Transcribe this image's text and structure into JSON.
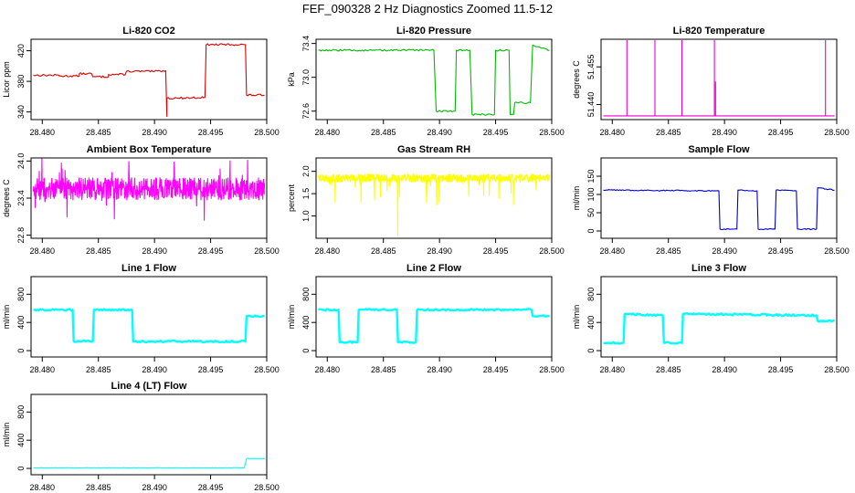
{
  "page": {
    "title": "FEF_090328  2 Hz Diagnostics Zoomed 11.5-12"
  },
  "chart_data": [
    {
      "id": "co2",
      "type": "line",
      "title": "Li-820 CO2",
      "ylabel": "Licor ppm",
      "color": "#dd0000",
      "xlim": [
        28.479,
        28.5
      ],
      "ylim": [
        330,
        435
      ],
      "xticks": [
        28.48,
        28.485,
        28.49,
        28.495,
        28.5
      ],
      "xtick_labels": [
        "28.480",
        "28.485",
        "28.490",
        "28.495",
        "28.500"
      ],
      "yticks": [
        340,
        380,
        420
      ],
      "ytick_labels": [
        "340",
        "380",
        "420"
      ],
      "noise": 1.2,
      "points": [
        [
          28.4792,
          388
        ],
        [
          28.4815,
          388
        ],
        [
          28.4815,
          387
        ],
        [
          28.4833,
          387
        ],
        [
          28.4833,
          390
        ],
        [
          28.4844,
          390
        ],
        [
          28.4845,
          386
        ],
        [
          28.4859,
          386
        ],
        [
          28.4859,
          389
        ],
        [
          28.4874,
          389
        ],
        [
          28.4875,
          393
        ],
        [
          28.49,
          393
        ],
        [
          28.491,
          394
        ],
        [
          28.4911,
          334
        ],
        [
          28.4911,
          358
        ],
        [
          28.492,
          358
        ],
        [
          28.4945,
          359
        ],
        [
          28.4946,
          428
        ],
        [
          28.4981,
          428
        ],
        [
          28.4982,
          362
        ],
        [
          28.4998,
          362
        ]
      ]
    },
    {
      "id": "pressure",
      "type": "line",
      "title": "Li-820 Pressure",
      "ylabel": "kPa",
      "color": "#00bb00",
      "xlim": [
        28.479,
        28.5
      ],
      "ylim": [
        72.5,
        73.45
      ],
      "xticks": [
        28.48,
        28.485,
        28.49,
        28.495,
        28.5
      ],
      "xtick_labels": [
        "28.480",
        "28.485",
        "28.490",
        "28.495",
        "28.500"
      ],
      "yticks": [
        72.6,
        73.0,
        73.4
      ],
      "ytick_labels": [
        "72.6",
        "73.0",
        "73.4"
      ],
      "noise": 0.01,
      "points": [
        [
          28.4792,
          73.32
        ],
        [
          28.4895,
          73.32
        ],
        [
          28.4897,
          72.6
        ],
        [
          28.4914,
          72.6
        ],
        [
          28.4915,
          73.32
        ],
        [
          28.4927,
          73.32
        ],
        [
          28.4929,
          72.56
        ],
        [
          28.4949,
          72.56
        ],
        [
          28.495,
          73.32
        ],
        [
          28.4962,
          73.32
        ],
        [
          28.4963,
          72.56
        ],
        [
          28.4966,
          72.56
        ],
        [
          28.4967,
          72.7
        ],
        [
          28.4981,
          72.7
        ],
        [
          28.4983,
          73.38
        ],
        [
          28.4998,
          73.32
        ]
      ]
    },
    {
      "id": "temperature",
      "type": "line",
      "title": "Li-820 Temperature",
      "ylabel": "degrees C",
      "color": "#ee00cc",
      "xlim": [
        28.479,
        28.5
      ],
      "ylim": [
        51.434,
        51.466
      ],
      "xticks": [
        28.48,
        28.485,
        28.49,
        28.495,
        28.5
      ],
      "xtick_labels": [
        "28.480",
        "28.485",
        "28.490",
        "28.495",
        "28.500"
      ],
      "yticks": [
        51.44,
        51.455
      ],
      "ytick_labels": [
        "51.440",
        "51.455"
      ],
      "noise": 0,
      "points": [
        [
          28.4792,
          51.4355
        ],
        [
          28.4813,
          51.4355
        ],
        [
          28.4813,
          51.4655
        ],
        [
          28.4813,
          51.4355
        ],
        [
          28.4838,
          51.4355
        ],
        [
          28.4838,
          51.4655
        ],
        [
          28.4838,
          51.4355
        ],
        [
          28.4862,
          51.4355
        ],
        [
          28.4862,
          51.4655
        ],
        [
          28.4862,
          51.4355
        ],
        [
          28.4891,
          51.4355
        ],
        [
          28.4891,
          51.4655
        ],
        [
          28.4891,
          51.4355
        ],
        [
          28.4892,
          51.4355
        ],
        [
          28.4892,
          51.449
        ],
        [
          28.4892,
          51.4355
        ],
        [
          28.499,
          51.4355
        ],
        [
          28.499,
          51.4655
        ],
        [
          28.499,
          51.4355
        ],
        [
          28.4998,
          51.4355
        ]
      ]
    },
    {
      "id": "ambient",
      "type": "line",
      "title": "Ambient Box Temperature",
      "ylabel": "degrees C",
      "color": "#ff00ff",
      "xlim": [
        28.479,
        28.5
      ],
      "ylim": [
        22.75,
        24.05
      ],
      "xticks": [
        28.48,
        28.485,
        28.49,
        28.495,
        28.5
      ],
      "xtick_labels": [
        "28.480",
        "28.485",
        "28.490",
        "28.495",
        "28.500"
      ],
      "yticks": [
        22.8,
        23.4,
        24.0
      ],
      "ytick_labels": [
        "22.8",
        "23.4",
        "24.0"
      ],
      "noise": 0.18,
      "points": [
        [
          28.4792,
          23.55
        ],
        [
          28.4998,
          23.55
        ]
      ]
    },
    {
      "id": "rh",
      "type": "line",
      "title": "Gas Stream RH",
      "ylabel": "percent",
      "color": "#ffff00",
      "xlim": [
        28.479,
        28.5
      ],
      "ylim": [
        0.5,
        2.3
      ],
      "xticks": [
        28.48,
        28.485,
        28.49,
        28.495,
        28.5
      ],
      "xtick_labels": [
        "28.480",
        "28.485",
        "28.490",
        "28.495",
        "28.500"
      ],
      "yticks": [
        1.0,
        1.5,
        2.0
      ],
      "ytick_labels": [
        "1.0",
        "1.5",
        "2.0"
      ],
      "noise": 0.09,
      "points": [
        [
          28.4792,
          1.85
        ],
        [
          28.4998,
          1.85
        ]
      ]
    },
    {
      "id": "sample",
      "type": "line",
      "title": "Sample Flow",
      "ylabel": "ml/min",
      "color": "#0000cc",
      "xlim": [
        28.479,
        28.5
      ],
      "ylim": [
        -20,
        200
      ],
      "xticks": [
        28.48,
        28.485,
        28.49,
        28.495,
        28.5
      ],
      "xtick_labels": [
        "28.480",
        "28.485",
        "28.490",
        "28.495",
        "28.500"
      ],
      "yticks": [
        0,
        50,
        100,
        150
      ],
      "ytick_labels": [
        "0",
        "50",
        "100",
        "150"
      ],
      "noise": 1.5,
      "points": [
        [
          28.4792,
          112
        ],
        [
          28.4895,
          110
        ],
        [
          28.4896,
          5
        ],
        [
          28.4911,
          5
        ],
        [
          28.4912,
          112
        ],
        [
          28.4929,
          110
        ],
        [
          28.493,
          5
        ],
        [
          28.4945,
          5
        ],
        [
          28.4946,
          112
        ],
        [
          28.4964,
          110
        ],
        [
          28.4965,
          5
        ],
        [
          28.4982,
          5
        ],
        [
          28.4983,
          118
        ],
        [
          28.4998,
          112
        ]
      ]
    },
    {
      "id": "line1",
      "type": "line",
      "title": "Line 1 Flow",
      "ylabel": "ml/min",
      "color": "#00ffff",
      "xlim": [
        28.479,
        28.5
      ],
      "ylim": [
        -90,
        1050
      ],
      "xticks": [
        28.48,
        28.485,
        28.49,
        28.495,
        28.5
      ],
      "xtick_labels": [
        "28.480",
        "28.485",
        "28.490",
        "28.495",
        "28.500"
      ],
      "yticks": [
        0,
        400,
        800
      ],
      "ytick_labels": [
        "0",
        "400",
        "800"
      ],
      "noise": 12,
      "points": [
        [
          28.4792,
          580
        ],
        [
          28.4827,
          580
        ],
        [
          28.4828,
          130
        ],
        [
          28.4845,
          130
        ],
        [
          28.4846,
          580
        ],
        [
          28.488,
          580
        ],
        [
          28.4881,
          130
        ],
        [
          28.4981,
          130
        ],
        [
          28.4982,
          490
        ],
        [
          28.4998,
          490
        ]
      ]
    },
    {
      "id": "line2",
      "type": "line",
      "title": "Line 2 Flow",
      "ylabel": "ml/min",
      "color": "#00ffff",
      "xlim": [
        28.479,
        28.5
      ],
      "ylim": [
        -90,
        1050
      ],
      "xticks": [
        28.48,
        28.485,
        28.49,
        28.495,
        28.5
      ],
      "xtick_labels": [
        "28.480",
        "28.485",
        "28.490",
        "28.495",
        "28.500"
      ],
      "yticks": [
        0,
        400,
        800
      ],
      "ytick_labels": [
        "0",
        "400",
        "800"
      ],
      "noise": 12,
      "points": [
        [
          28.4792,
          580
        ],
        [
          28.481,
          580
        ],
        [
          28.4811,
          120
        ],
        [
          28.4827,
          120
        ],
        [
          28.4828,
          580
        ],
        [
          28.4862,
          580
        ],
        [
          28.4863,
          120
        ],
        [
          28.4879,
          120
        ],
        [
          28.488,
          580
        ],
        [
          28.4982,
          580
        ],
        [
          28.4983,
          490
        ],
        [
          28.4998,
          490
        ]
      ]
    },
    {
      "id": "line3",
      "type": "line",
      "title": "Line 3 Flow",
      "ylabel": "ml/min",
      "color": "#00ffff",
      "xlim": [
        28.479,
        28.5
      ],
      "ylim": [
        -90,
        1050
      ],
      "xticks": [
        28.48,
        28.485,
        28.49,
        28.495,
        28.5
      ],
      "xtick_labels": [
        "28.480",
        "28.485",
        "28.490",
        "28.495",
        "28.500"
      ],
      "yticks": [
        0,
        400,
        800
      ],
      "ytick_labels": [
        "0",
        "400",
        "800"
      ],
      "noise": 12,
      "points": [
        [
          28.4792,
          110
        ],
        [
          28.481,
          110
        ],
        [
          28.4811,
          520
        ],
        [
          28.4845,
          500
        ],
        [
          28.4846,
          110
        ],
        [
          28.4862,
          110
        ],
        [
          28.4863,
          520
        ],
        [
          28.4982,
          500
        ],
        [
          28.4983,
          420
        ],
        [
          28.4998,
          420
        ]
      ]
    },
    {
      "id": "line4",
      "type": "line",
      "title": "Line 4 (LT) Flow",
      "ylabel": "ml/min",
      "color": "#00ffff",
      "xlim": [
        28.479,
        28.5
      ],
      "ylim": [
        -90,
        1050
      ],
      "xticks": [
        28.48,
        28.485,
        28.49,
        28.495,
        28.5
      ],
      "xtick_labels": [
        "28.480",
        "28.485",
        "28.490",
        "28.495",
        "28.500"
      ],
      "yticks": [
        0,
        400,
        800
      ],
      "ytick_labels": [
        "0",
        "400",
        "800"
      ],
      "noise": 3,
      "points": [
        [
          28.4792,
          8
        ],
        [
          28.498,
          8
        ],
        [
          28.4982,
          140
        ],
        [
          28.4998,
          140
        ]
      ]
    }
  ]
}
